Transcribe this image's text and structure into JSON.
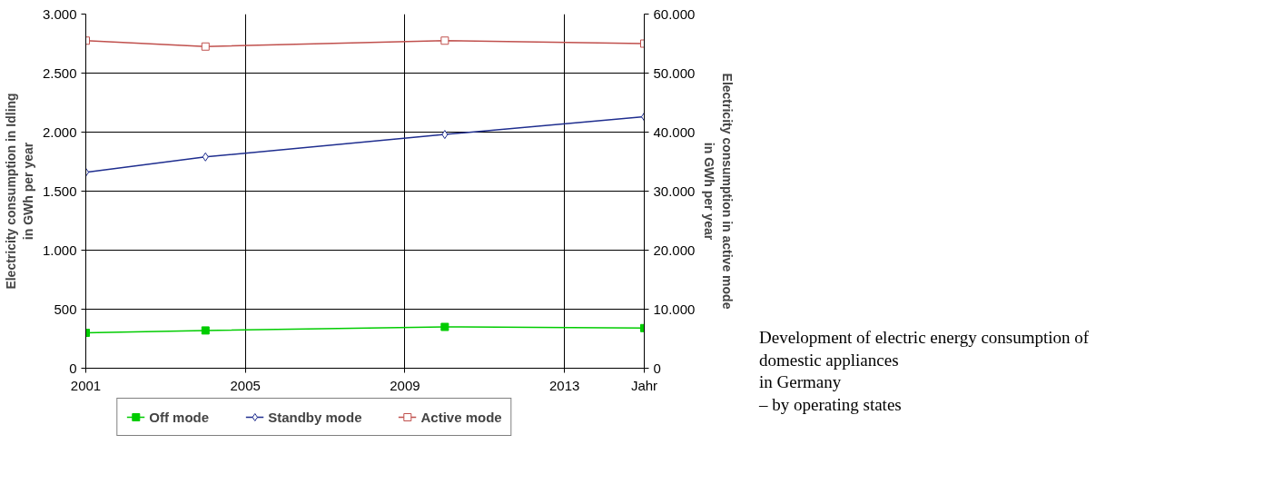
{
  "chart_data": {
    "type": "line",
    "x": [
      2001,
      2004,
      2010,
      2015
    ],
    "xlim": [
      2001,
      2015
    ],
    "xticks": [
      2001,
      2005,
      2009,
      2013,
      {
        "value": 2015,
        "label": "Jahr"
      }
    ],
    "ylim": [
      0,
      3000
    ],
    "yticks": [
      {
        "value": 0,
        "label": "0"
      },
      {
        "value": 500,
        "label": "500"
      },
      {
        "value": 1000,
        "label": "1.000"
      },
      {
        "value": 1500,
        "label": "1.500"
      },
      {
        "value": 2000,
        "label": "2.000"
      },
      {
        "value": 2500,
        "label": "2.500"
      },
      {
        "value": 3000,
        "label": "3.000"
      }
    ],
    "y2lim": [
      0,
      60000
    ],
    "y2ticks": [
      {
        "value": 0,
        "label": "0"
      },
      {
        "value": 10000,
        "label": "10.000"
      },
      {
        "value": 20000,
        "label": "20.000"
      },
      {
        "value": 30000,
        "label": "30.000"
      },
      {
        "value": 40000,
        "label": "40.000"
      },
      {
        "value": 50000,
        "label": "50.000"
      },
      {
        "value": 60000,
        "label": "60.000"
      }
    ],
    "ylabel": "Electricity consumption in Idling\nin GWh per year",
    "y2label": "Electricity consumption in active mode\nin GWh per year",
    "series": [
      {
        "name": "Off mode",
        "color": "#00cc00",
        "marker": "square",
        "values": [
          300,
          320,
          350,
          340
        ]
      },
      {
        "name": "Standby mode",
        "color": "#1f2e8f",
        "marker": "diamond",
        "values": [
          1660,
          1790,
          1980,
          2130
        ]
      },
      {
        "name": "Active mode",
        "color": "#c0504d",
        "marker": "square",
        "axis": "y2",
        "values": [
          55500,
          54500,
          55500,
          55000
        ]
      }
    ],
    "grid": true,
    "legend": "bottom",
    "annotations": [
      "Development of electric energy consumption of\ndomestic appliances\nin Germany\n– by operating states"
    ]
  }
}
